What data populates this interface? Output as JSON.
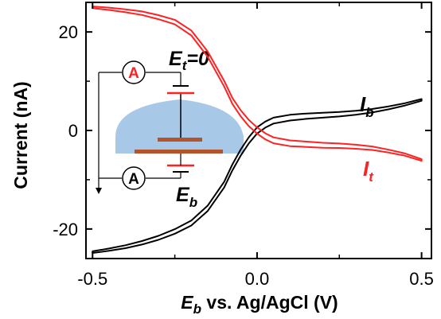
{
  "chart_data": {
    "type": "line",
    "title": "",
    "xlabel": {
      "main": "E",
      "sub": "b",
      "rest": " vs. Ag/AgCl (V)"
    },
    "ylabel": "Current (nA)",
    "xlim": [
      -0.52,
      0.53
    ],
    "ylim": [
      -26,
      26
    ],
    "x_ticks": [
      -0.5,
      0.0,
      0.5
    ],
    "x_tick_labels": [
      "-0.5",
      "0.0",
      "0.5"
    ],
    "y_ticks": [
      -20,
      0,
      20
    ],
    "y_tick_labels": [
      "-20",
      "0",
      "20"
    ],
    "grid": false,
    "series": [
      {
        "name": "I_b",
        "color": "#000000",
        "x": [
          -0.5,
          -0.45,
          -0.4,
          -0.35,
          -0.3,
          -0.25,
          -0.2,
          -0.15,
          -0.1,
          -0.075,
          -0.05,
          -0.025,
          0.0,
          0.025,
          0.05,
          0.1,
          0.15,
          0.2,
          0.25,
          0.3,
          0.35,
          0.4,
          0.45,
          0.5
        ],
        "y": [
          -24.7,
          -24.2,
          -23.6,
          -22.8,
          -21.8,
          -20.5,
          -18.8,
          -15.8,
          -11.0,
          -7.5,
          -4.5,
          -2.0,
          0.0,
          1.2,
          2.0,
          2.6,
          2.9,
          3.1,
          3.3,
          3.6,
          4.0,
          4.6,
          5.3,
          6.2
        ]
      },
      {
        "name": "I_t",
        "color": "#ff2222",
        "x": [
          -0.5,
          -0.45,
          -0.4,
          -0.35,
          -0.3,
          -0.25,
          -0.2,
          -0.15,
          -0.1,
          -0.075,
          -0.05,
          -0.025,
          0.0,
          0.025,
          0.05,
          0.1,
          0.15,
          0.2,
          0.25,
          0.3,
          0.35,
          0.4,
          0.45,
          0.5
        ],
        "y": [
          25.0,
          24.7,
          24.3,
          23.8,
          23.0,
          22.0,
          19.8,
          15.5,
          9.5,
          6.0,
          3.5,
          1.5,
          0.0,
          -1.2,
          -2.0,
          -2.6,
          -2.8,
          -3.0,
          -3.1,
          -3.3,
          -3.6,
          -4.2,
          -4.9,
          -6.0
        ]
      }
    ],
    "series_labels": [
      {
        "main": "I",
        "sub": "b",
        "color": "#000000"
      },
      {
        "main": "I",
        "sub": "t",
        "color": "#ff2222"
      }
    ]
  },
  "inset": {
    "top_electrode": {
      "main": "E",
      "sub": "t",
      "rest": "=0"
    },
    "bottom_electrode": {
      "main": "E",
      "sub": "b"
    },
    "ammeter_symbol": "A",
    "ammeter_top_color": "#ff2222",
    "ammeter_bottom_color": "#000000",
    "droplet_color": "#a8c8e8",
    "electrode_color": "#b5532a",
    "red": "#ff2222"
  }
}
